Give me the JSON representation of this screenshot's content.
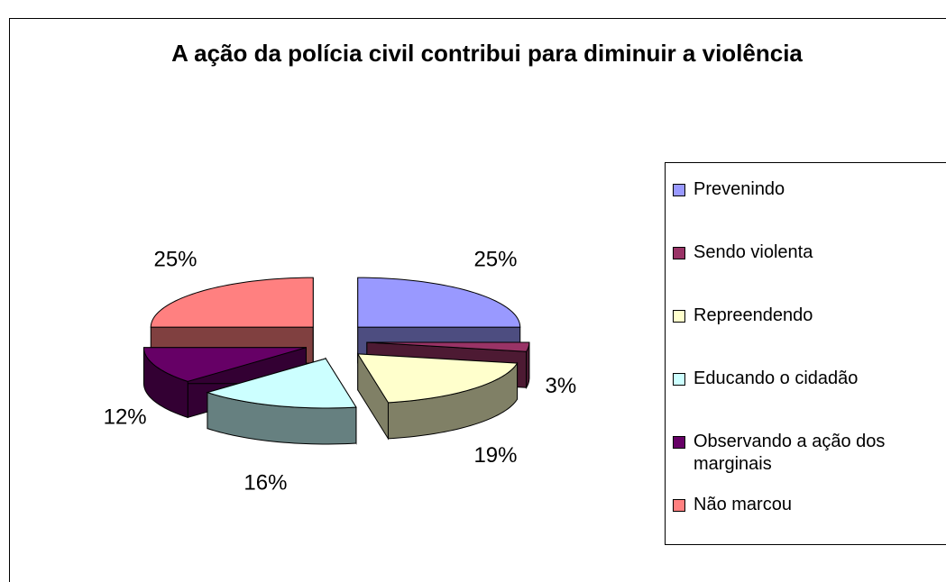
{
  "chart_data": {
    "type": "pie3d",
    "title": "A ação da polícia civil contribui para diminuir a violência",
    "categories": [
      "Prevenindo",
      "Sendo violenta",
      "Repreendendo",
      "Educando o cidadão",
      "Observando a ação dos marginais",
      "Não marcou"
    ],
    "values": [
      25,
      3,
      19,
      16,
      12,
      25
    ],
    "value_labels": [
      "25%",
      "3%",
      "19%",
      "16%",
      "12%",
      "25%"
    ],
    "colors": [
      "#9999ff",
      "#993366",
      "#ffffcc",
      "#ccffff",
      "#660066",
      "#ff8080"
    ],
    "legend": "right"
  }
}
